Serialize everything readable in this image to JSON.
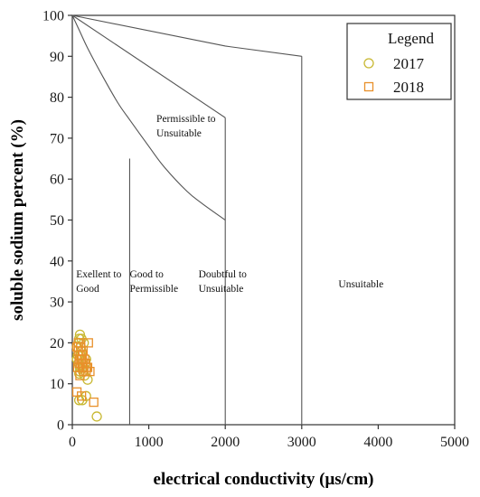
{
  "chart_data": {
    "type": "scatter",
    "title": "",
    "xlabel": "electrical conductivity (μs/cm)",
    "ylabel": "soluble sodium percent (%)",
    "xlim": [
      0,
      5000
    ],
    "ylim": [
      0,
      100
    ],
    "xticks": [
      0,
      1000,
      2000,
      3000,
      4000,
      5000
    ],
    "yticks": [
      0,
      10,
      20,
      30,
      40,
      50,
      60,
      70,
      80,
      90,
      100
    ],
    "grid": false,
    "legend": {
      "title": "Legend",
      "position": "top-right"
    },
    "region_labels": [
      {
        "lines": [
          "Exellent to",
          "Good"
        ],
        "ec": 50,
        "ssp": 36
      },
      {
        "lines": [
          "Good to",
          "Permissible"
        ],
        "ec": 750,
        "ssp": 36
      },
      {
        "lines": [
          "Doubtful to",
          "Unsuitable"
        ],
        "ec": 1650,
        "ssp": 36
      },
      {
        "lines": [
          "Unsuitable"
        ],
        "ec": 3480,
        "ssp": 33.5
      },
      {
        "lines": [
          "Permissible to",
          "Unsuitable"
        ],
        "ec": 1100,
        "ssp": 74
      }
    ],
    "boundaries": [
      {
        "name": "curve_to_2000",
        "points": [
          [
            0,
            100
          ],
          [
            100,
            96
          ],
          [
            200,
            92
          ],
          [
            400,
            85
          ],
          [
            600,
            78.5
          ],
          [
            750,
            74.5
          ],
          [
            1000,
            68
          ],
          [
            1200,
            63
          ],
          [
            1500,
            57
          ],
          [
            1700,
            54
          ],
          [
            2000,
            50
          ]
        ]
      },
      {
        "name": "curve_to_3000",
        "points": [
          [
            0,
            100
          ],
          [
            2000,
            92.5
          ],
          [
            3000,
            90
          ]
        ]
      },
      {
        "name": "line_to_2000_top",
        "points": [
          [
            0,
            100
          ],
          [
            2000,
            75
          ]
        ]
      },
      {
        "name": "vertical_750",
        "points": [
          [
            750,
            0
          ],
          [
            750,
            65
          ]
        ]
      },
      {
        "name": "vertical_2000",
        "points": [
          [
            2000,
            0
          ],
          [
            2000,
            75
          ]
        ]
      },
      {
        "name": "vertical_3000",
        "points": [
          [
            3000,
            0
          ],
          [
            3000,
            90
          ]
        ]
      }
    ],
    "series": [
      {
        "name": "2017",
        "marker": "circle",
        "color": "#c8b832",
        "points": [
          [
            80,
            20
          ],
          [
            100,
            22
          ],
          [
            90,
            21
          ],
          [
            120,
            18
          ],
          [
            70,
            17
          ],
          [
            110,
            19
          ],
          [
            60,
            16
          ],
          [
            130,
            15
          ],
          [
            100,
            14
          ],
          [
            140,
            13
          ],
          [
            90,
            12.5
          ],
          [
            160,
            12
          ],
          [
            180,
            16
          ],
          [
            150,
            20
          ],
          [
            120,
            21
          ],
          [
            200,
            11
          ],
          [
            180,
            7
          ],
          [
            90,
            6
          ],
          [
            130,
            6
          ],
          [
            320,
            2
          ],
          [
            80,
            15
          ],
          [
            110,
            17
          ],
          [
            60,
            19
          ],
          [
            100,
            13
          ],
          [
            150,
            14
          ],
          [
            170,
            15
          ]
        ]
      },
      {
        "name": "2018",
        "marker": "square",
        "color": "#e8902a",
        "points": [
          [
            60,
            19
          ],
          [
            80,
            18
          ],
          [
            100,
            17
          ],
          [
            120,
            16
          ],
          [
            140,
            15
          ],
          [
            90,
            16
          ],
          [
            110,
            15
          ],
          [
            70,
            14
          ],
          [
            130,
            14
          ],
          [
            150,
            13
          ],
          [
            170,
            15
          ],
          [
            190,
            14
          ],
          [
            210,
            20
          ],
          [
            230,
            13
          ],
          [
            100,
            12
          ],
          [
            60,
            8
          ],
          [
            120,
            7
          ],
          [
            280,
            5.5
          ],
          [
            80,
            20
          ],
          [
            140,
            18
          ],
          [
            160,
            16
          ],
          [
            200,
            14
          ],
          [
            180,
            13
          ],
          [
            90,
            15
          ],
          [
            110,
            19
          ],
          [
            130,
            17
          ]
        ]
      }
    ]
  }
}
